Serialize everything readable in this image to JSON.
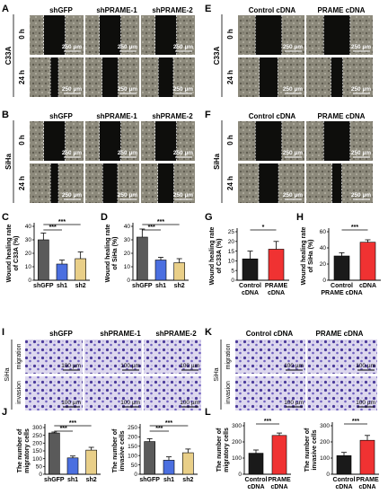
{
  "panel_letters": [
    "A",
    "B",
    "C",
    "D",
    "E",
    "F",
    "G",
    "H",
    "I",
    "J",
    "K",
    "L"
  ],
  "wound_left": {
    "cols": [
      "shGFP",
      "shPRAME-1",
      "shPRAME-2"
    ],
    "scale": "250 µm",
    "rows_A": {
      "cell": "C33A",
      "times": [
        "0 h",
        "24 h"
      ]
    },
    "rows_B": {
      "cell": "SiHa",
      "times": [
        "0 h",
        "24 h"
      ]
    }
  },
  "wound_right": {
    "cols": [
      "Control cDNA",
      "PRAME cDNA"
    ],
    "scale": "250 µm",
    "rows_E": {
      "cell": "C33A",
      "times": [
        "0 h",
        "24 h"
      ]
    },
    "rows_F": {
      "cell": "SiHa",
      "times": [
        "0 h",
        "24 h"
      ]
    }
  },
  "transwell_left": {
    "cols": [
      "shGFP",
      "shPRAME-1",
      "shPRAME-2"
    ],
    "cell": "SiHa",
    "rows": [
      "migration",
      "invasion"
    ],
    "scale": "100 µm"
  },
  "transwell_right": {
    "cols": [
      "Control cDNA",
      "PRAME cDNA"
    ],
    "cell": "SiHa",
    "rows": [
      "migration",
      "invasion"
    ],
    "scale": "100 µm"
  },
  "colors": {
    "gray": "#5a5a5a",
    "blue": "#4b6fe0",
    "yellow": "#e9cf88",
    "red": "#f03232",
    "black": "#1a1a1a"
  },
  "chart_data": [
    {
      "id": "C",
      "type": "bar",
      "ylabel": "Wound healing rate of C33A (%)",
      "categories": [
        "shGFP",
        "sh1",
        "sh2"
      ],
      "values": [
        30,
        12,
        16
      ],
      "errors": [
        5,
        3,
        5
      ],
      "ylim": [
        0,
        40
      ],
      "yticks": [
        0,
        10,
        20,
        30,
        40
      ],
      "colors": [
        "gray",
        "blue",
        "yellow"
      ],
      "sig": [
        "***",
        "***"
      ]
    },
    {
      "id": "D",
      "type": "bar",
      "ylabel": "Wound healing rate of SiHa (%)",
      "categories": [
        "shGFP",
        "sh1",
        "sh2"
      ],
      "values": [
        32,
        15,
        13
      ],
      "errors": [
        6,
        2,
        3
      ],
      "ylim": [
        0,
        40
      ],
      "yticks": [
        0,
        10,
        20,
        30,
        40
      ],
      "colors": [
        "gray",
        "blue",
        "yellow"
      ],
      "sig": [
        "***",
        "***"
      ]
    },
    {
      "id": "G",
      "type": "bar",
      "ylabel": "Wound healing rate of C33A (%)",
      "categories": [
        "Control cDNA",
        "PRAME cDNA"
      ],
      "values": [
        11,
        16
      ],
      "errors": [
        4,
        4
      ],
      "ylim": [
        0,
        25
      ],
      "yticks": [
        0,
        5,
        10,
        15,
        20,
        25
      ],
      "colors": [
        "black",
        "red"
      ],
      "sig": [
        "*"
      ]
    },
    {
      "id": "H",
      "type": "bar",
      "ylabel": "Wound healing rate of SiHa (%)",
      "categories": [
        "Control PRAME cDNA",
        "cDNA"
      ],
      "values": [
        30,
        47
      ],
      "errors": [
        4,
        3
      ],
      "ylim": [
        0,
        60
      ],
      "yticks": [
        0,
        20,
        40,
        60
      ],
      "colors": [
        "black",
        "red"
      ],
      "sig": [
        "***"
      ]
    },
    {
      "id": "J1",
      "type": "bar",
      "ylabel": "The number of migratory cells",
      "categories": [
        "shGFP",
        "sh1",
        "sh2"
      ],
      "values": [
        265,
        105,
        155
      ],
      "errors": [
        6,
        12,
        18
      ],
      "ylim": [
        0,
        300
      ],
      "yticks": [
        0,
        50,
        100,
        150,
        200,
        250,
        300
      ],
      "colors": [
        "gray",
        "blue",
        "yellow"
      ],
      "sig": [
        "***",
        "***"
      ]
    },
    {
      "id": "J2",
      "type": "bar",
      "ylabel": "The number of invasive cells",
      "categories": [
        "shGFP",
        "sh1",
        "sh2"
      ],
      "values": [
        175,
        75,
        115
      ],
      "errors": [
        15,
        18,
        20
      ],
      "ylim": [
        0,
        250
      ],
      "yticks": [
        0,
        50,
        100,
        150,
        200,
        250
      ],
      "colors": [
        "gray",
        "blue",
        "yellow"
      ],
      "sig": [
        "***",
        "***"
      ]
    },
    {
      "id": "L1",
      "type": "bar",
      "ylabel": "The number of migratory cells",
      "categories": [
        "Control cDNA",
        "PRAME cDNA"
      ],
      "values": [
        130,
        240
      ],
      "errors": [
        20,
        15
      ],
      "ylim": [
        0,
        300
      ],
      "yticks": [
        0,
        100,
        200,
        300
      ],
      "colors": [
        "black",
        "red"
      ],
      "sig": [
        "***"
      ]
    },
    {
      "id": "L2",
      "type": "bar",
      "ylabel": "The number of invasive cells",
      "categories": [
        "Control cDNA",
        "PRAME cDNA"
      ],
      "values": [
        115,
        210
      ],
      "errors": [
        20,
        30
      ],
      "ylim": [
        0,
        300
      ],
      "yticks": [
        0,
        100,
        200,
        300
      ],
      "colors": [
        "black",
        "red"
      ],
      "sig": [
        "***"
      ]
    }
  ]
}
